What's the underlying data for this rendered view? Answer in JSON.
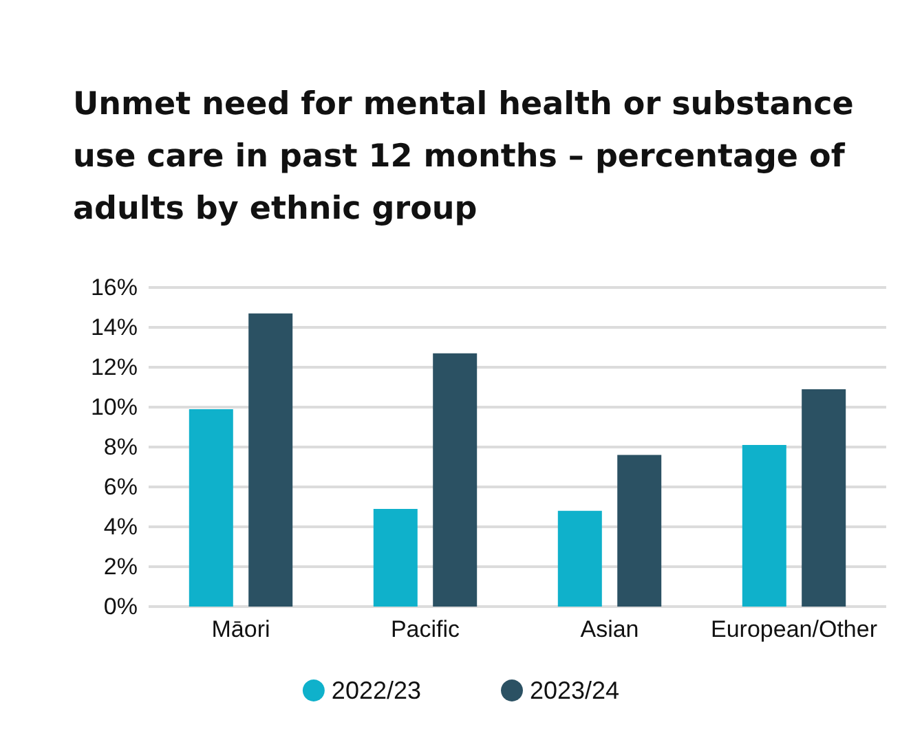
{
  "chart_data": {
    "type": "bar",
    "title": "Unmet need for mental health or substance use care in past 12 months – percentage of adults by ethnic group",
    "categories": [
      "Māori",
      "Pacific",
      "Asian",
      "European/Other"
    ],
    "series": [
      {
        "name": "2022/23",
        "color": "#0fb1cb",
        "values": [
          9.9,
          4.9,
          4.8,
          8.1
        ]
      },
      {
        "name": "2023/24",
        "color": "#2b5163",
        "values": [
          14.7,
          12.7,
          7.6,
          10.9
        ]
      }
    ],
    "ylim": [
      0,
      16
    ],
    "yticks": [
      {
        "value": 0,
        "label": "0%"
      },
      {
        "value": 2,
        "label": "2%"
      },
      {
        "value": 4,
        "label": "4%"
      },
      {
        "value": 6,
        "label": "6%"
      },
      {
        "value": 8,
        "label": "8%"
      },
      {
        "value": 10,
        "label": "10%"
      },
      {
        "value": 12,
        "label": "12%"
      },
      {
        "value": 14,
        "label": "14%"
      },
      {
        "value": 16,
        "label": "16%"
      }
    ],
    "grid": "y",
    "legend": "bottom"
  }
}
